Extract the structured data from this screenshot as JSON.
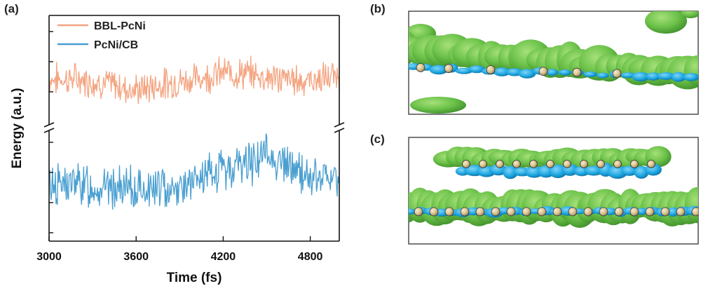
{
  "panels": {
    "a": "(a)",
    "b": "(b)",
    "c": "(c)"
  },
  "chart_data": {
    "type": "line",
    "title": "",
    "xlabel": "Time (fs)",
    "ylabel": "Energy (a.u.)",
    "xlim": [
      3000,
      5000
    ],
    "xticks": [
      3000,
      3600,
      4200,
      4800
    ],
    "yticks_labelled": false,
    "broken_y_axis": true,
    "legend_position": "top-left",
    "series": [
      {
        "name": "BBL-PcNi",
        "color": "#f4a582",
        "trend": [
          [
            3000,
            0.52
          ],
          [
            3200,
            0.52
          ],
          [
            3400,
            0.46
          ],
          [
            3600,
            0.38
          ],
          [
            3800,
            0.46
          ],
          [
            4000,
            0.52
          ],
          [
            4200,
            0.6
          ],
          [
            4400,
            0.58
          ],
          [
            4600,
            0.52
          ],
          [
            4800,
            0.5
          ],
          [
            5000,
            0.56
          ]
        ],
        "noise_amplitude": 0.32,
        "seed": 7
      },
      {
        "name": "PcNi/CB",
        "color": "#4a9fd0",
        "trend": [
          [
            3000,
            0.4
          ],
          [
            3200,
            0.4
          ],
          [
            3400,
            0.36
          ],
          [
            3600,
            0.34
          ],
          [
            3800,
            0.36
          ],
          [
            4000,
            0.4
          ],
          [
            4200,
            0.54
          ],
          [
            4400,
            0.62
          ],
          [
            4500,
            0.7
          ],
          [
            4600,
            0.6
          ],
          [
            4800,
            0.46
          ],
          [
            5000,
            0.44
          ]
        ],
        "noise_amplitude": 0.34,
        "seed": 13
      }
    ]
  },
  "images": {
    "b": {
      "description_icon": "molecule-isosurface-icon"
    },
    "c": {
      "description_icon": "molecule-isosurface-icon"
    }
  },
  "colors": {
    "surface_green": "#6cc24a",
    "surface_green_dark": "#3f8f2a",
    "surface_blue": "#1ea7e1",
    "atom_tan": "#d8c08c"
  }
}
